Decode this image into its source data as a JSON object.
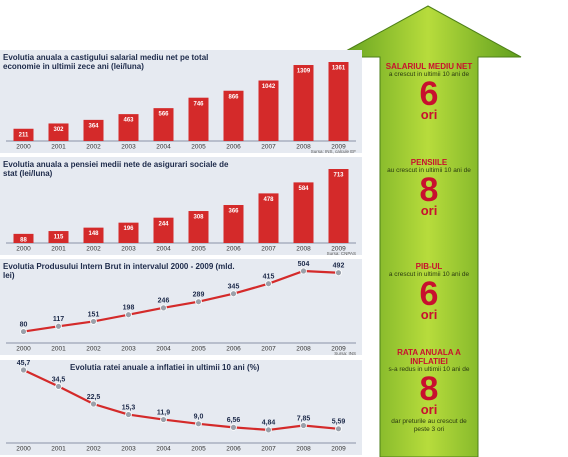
{
  "chart_data": [
    {
      "type": "bar",
      "title": "Evolutia anuala a castigului salarial mediu net pe total economie in ultimii zece ani (lei/luna)",
      "source": "Sursa: INS, calcule EF",
      "color": "#d42a2a",
      "categories": [
        "2000",
        "2001",
        "2002",
        "2003",
        "2004",
        "2005",
        "2006",
        "2007",
        "2008",
        "2009"
      ],
      "values": [
        211,
        302,
        364,
        463,
        566,
        746,
        866,
        1042,
        1309,
        1361
      ]
    },
    {
      "type": "bar",
      "title": "Evolutia anuala a pensiei medii nete de asigurari sociale de stat (lei/luna)",
      "source": "Sursa: CNPAS",
      "color": "#d42a2a",
      "categories": [
        "2000",
        "2001",
        "2002",
        "2003",
        "2004",
        "2005",
        "2006",
        "2007",
        "2008",
        "2009"
      ],
      "values": [
        88,
        115,
        148,
        196,
        244,
        308,
        366,
        478,
        584,
        713
      ]
    },
    {
      "type": "line",
      "title": "Evolutia Produsului Intern Brut in intervalul 2000 - 2009 (mld. lei)",
      "source": "Sursa: INS",
      "color": "#d42a2a",
      "categories": [
        "2000",
        "2001",
        "2002",
        "2003",
        "2004",
        "2005",
        "2006",
        "2007",
        "2008",
        "2009"
      ],
      "values": [
        80,
        117,
        151,
        198,
        246,
        289,
        345,
        415,
        504,
        492
      ]
    },
    {
      "type": "line",
      "title": "Evolutia ratei anuale a inflatiei in ultimii 10 ani (%)",
      "color": "#d42a2a",
      "categories": [
        "2000",
        "2001",
        "2002",
        "2003",
        "2004",
        "2005",
        "2006",
        "2007",
        "2008",
        "2009"
      ],
      "values": [
        45.7,
        34.5,
        22.5,
        15.3,
        11.9,
        9.0,
        6.56,
        4.84,
        7.85,
        5.59
      ],
      "value_labels": [
        "45,7",
        "34,5",
        "22,5",
        "15,3",
        "11,9",
        "9,0",
        "6,56",
        "4,84",
        "7,85",
        "5,59"
      ]
    }
  ],
  "sidebar": [
    {
      "heading": "SALARIUL MEDIU NET",
      "text": "a crescut in ultimii 10 ani de",
      "number": "6",
      "unit": "ori"
    },
    {
      "heading": "PENSIILE",
      "text": "au crescut in ultimii 10 ani de",
      "number": "8",
      "unit": "ori"
    },
    {
      "heading": "PIB-UL",
      "text": "a crescut in ultimii 10 ani de",
      "number": "6",
      "unit": "ori"
    },
    {
      "heading": "RATA ANUALA A INFLATIEI",
      "text": "s-a redus in ultimii 10 ani de",
      "number": "8",
      "unit": "ori",
      "note": "dar preturile au crescut de peste 3 ori"
    }
  ]
}
